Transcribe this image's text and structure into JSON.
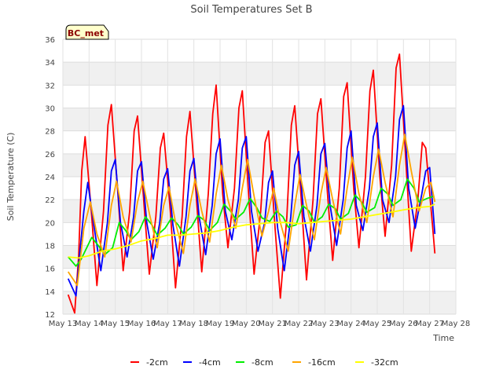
{
  "chart_data": {
    "type": "line",
    "title": "Soil Temperatures Set B",
    "xlabel": "Time",
    "ylabel": "Soil Temperature (C)",
    "site_label": "BC_met",
    "ylim": [
      12,
      36
    ],
    "y_ticks": [
      12,
      14,
      16,
      18,
      20,
      22,
      24,
      26,
      28,
      30,
      32,
      34,
      36
    ],
    "xlim": [
      13,
      28
    ],
    "x_ticks": [
      13,
      14,
      15,
      16,
      17,
      18,
      19,
      20,
      21,
      22,
      23,
      24,
      25,
      26,
      27,
      28
    ],
    "x_tick_labels": [
      "May 13",
      "May 14",
      "May 15",
      "May 16",
      "May 17",
      "May 18",
      "May 19",
      "May 20",
      "May 21",
      "May 22",
      "May 23",
      "May 24",
      "May 25",
      "May 26",
      "May 27",
      "May 28"
    ],
    "grid": "horizontal bands",
    "legend_position": "bottom-center",
    "series": [
      {
        "name": "-2cm",
        "color": "#ff0000",
        "x": [
          13.2,
          13.45,
          13.6,
          13.72,
          13.85,
          14.1,
          14.3,
          14.55,
          14.72,
          14.85,
          15.1,
          15.3,
          15.55,
          15.72,
          15.85,
          16.1,
          16.3,
          16.55,
          16.72,
          16.85,
          17.1,
          17.3,
          17.55,
          17.72,
          17.85,
          18.1,
          18.3,
          18.55,
          18.72,
          18.85,
          19.1,
          19.3,
          19.55,
          19.72,
          19.85,
          20.1,
          20.3,
          20.55,
          20.72,
          20.85,
          21.1,
          21.3,
          21.55,
          21.72,
          21.85,
          22.1,
          22.3,
          22.55,
          22.72,
          22.85,
          23.1,
          23.3,
          23.55,
          23.72,
          23.85,
          24.1,
          24.3,
          24.55,
          24.72,
          24.85,
          25.1,
          25.3,
          25.55,
          25.72,
          25.85,
          26.1,
          26.3,
          26.55,
          26.72,
          26.85,
          27.1,
          27.2
        ],
        "y": [
          13.7,
          12.1,
          17.0,
          24.5,
          27.5,
          20.5,
          14.5,
          21.0,
          28.5,
          30.3,
          22.5,
          15.8,
          21.0,
          28.0,
          29.3,
          21.5,
          15.5,
          20.5,
          26.5,
          27.8,
          21.0,
          14.3,
          20.5,
          27.5,
          29.7,
          22.0,
          15.7,
          22.5,
          29.5,
          32.0,
          22.5,
          17.8,
          23.0,
          30.0,
          31.5,
          22.0,
          15.5,
          21.0,
          27.0,
          28.0,
          19.5,
          13.4,
          20.5,
          28.5,
          30.2,
          22.0,
          15.0,
          22.0,
          29.5,
          30.8,
          22.5,
          16.7,
          23.0,
          31.0,
          32.2,
          23.0,
          17.8,
          24.0,
          31.5,
          33.3,
          24.0,
          18.8,
          25.0,
          33.5,
          34.7,
          25.0,
          17.5,
          22.0,
          27.0,
          26.5,
          20.0,
          17.3
        ]
      },
      {
        "name": "-4cm",
        "color": "#0000ff",
        "x": [
          13.2,
          13.5,
          13.65,
          13.8,
          13.95,
          14.2,
          14.45,
          14.7,
          14.85,
          15.0,
          15.2,
          15.45,
          15.7,
          15.85,
          16.0,
          16.2,
          16.45,
          16.7,
          16.85,
          17.0,
          17.2,
          17.45,
          17.7,
          17.85,
          18.0,
          18.2,
          18.45,
          18.7,
          18.85,
          19.0,
          19.2,
          19.45,
          19.7,
          19.85,
          20.0,
          20.2,
          20.45,
          20.7,
          20.85,
          21.0,
          21.2,
          21.45,
          21.7,
          21.85,
          22.0,
          22.2,
          22.45,
          22.7,
          22.85,
          23.0,
          23.2,
          23.45,
          23.7,
          23.85,
          24.0,
          24.2,
          24.45,
          24.7,
          24.85,
          25.0,
          25.2,
          25.45,
          25.7,
          25.85,
          26.0,
          26.2,
          26.45,
          26.7,
          26.85,
          27.0,
          27.2
        ],
        "y": [
          15.1,
          13.6,
          17.5,
          21.0,
          23.5,
          19.5,
          15.8,
          20.0,
          24.5,
          25.5,
          20.0,
          17.0,
          20.5,
          24.5,
          25.3,
          20.0,
          16.8,
          20.0,
          23.8,
          24.7,
          19.8,
          16.2,
          20.5,
          24.5,
          25.6,
          20.5,
          17.2,
          21.5,
          26.0,
          27.3,
          21.0,
          18.5,
          22.0,
          26.5,
          27.5,
          21.0,
          17.5,
          20.0,
          23.5,
          24.5,
          19.5,
          15.8,
          20.5,
          25.0,
          26.2,
          20.5,
          17.5,
          21.5,
          26.0,
          26.9,
          21.5,
          18.0,
          22.0,
          26.5,
          28.0,
          21.5,
          19.3,
          23.0,
          27.5,
          28.7,
          22.0,
          20.0,
          24.0,
          29.0,
          30.2,
          23.0,
          19.5,
          22.5,
          24.5,
          24.8,
          19.0
        ]
      },
      {
        "name": "-8cm",
        "color": "#00ee00",
        "x": [
          13.2,
          13.5,
          13.7,
          14.1,
          14.35,
          14.6,
          14.9,
          15.15,
          15.4,
          15.6,
          15.9,
          16.15,
          16.4,
          16.6,
          16.9,
          17.15,
          17.4,
          17.6,
          17.9,
          18.15,
          18.4,
          18.6,
          18.9,
          19.15,
          19.4,
          19.6,
          19.9,
          20.15,
          20.4,
          20.6,
          20.9,
          21.15,
          21.4,
          21.6,
          21.9,
          22.15,
          22.4,
          22.6,
          22.9,
          23.15,
          23.4,
          23.6,
          23.9,
          24.15,
          24.4,
          24.6,
          24.9,
          25.15,
          25.4,
          25.6,
          25.9,
          26.15,
          26.4,
          26.6,
          26.9,
          27.15,
          27.2
        ],
        "y": [
          17.0,
          16.2,
          16.8,
          18.7,
          18.0,
          17.2,
          17.8,
          20.0,
          19.3,
          18.5,
          19.2,
          20.5,
          19.8,
          18.9,
          19.5,
          20.4,
          19.8,
          19.0,
          19.6,
          20.6,
          20.2,
          19.3,
          20.0,
          21.6,
          21.0,
          20.3,
          20.9,
          22.1,
          21.3,
          20.4,
          20.1,
          21.0,
          20.5,
          19.6,
          19.8,
          21.5,
          21.0,
          20.0,
          20.5,
          21.6,
          21.2,
          20.3,
          20.8,
          22.4,
          21.8,
          20.9,
          21.3,
          23.0,
          22.5,
          21.5,
          22.0,
          23.8,
          23.0,
          21.8,
          22.1,
          22.3,
          21.8
        ]
      },
      {
        "name": "-16cm",
        "color": "#ffa500",
        "x": [
          13.2,
          13.55,
          13.8,
          14.05,
          14.3,
          14.6,
          14.85,
          15.05,
          15.3,
          15.6,
          15.85,
          16.05,
          16.3,
          16.6,
          16.85,
          17.05,
          17.3,
          17.6,
          17.85,
          18.05,
          18.3,
          18.6,
          18.85,
          19.05,
          19.3,
          19.6,
          19.85,
          20.05,
          20.3,
          20.6,
          20.85,
          21.05,
          21.3,
          21.6,
          21.85,
          22.05,
          22.3,
          22.6,
          22.85,
          23.05,
          23.3,
          23.6,
          23.85,
          24.05,
          24.3,
          24.6,
          24.85,
          25.05,
          25.3,
          25.6,
          25.85,
          26.05,
          26.3,
          26.6,
          26.85,
          27.05,
          27.2
        ],
        "y": [
          15.7,
          14.5,
          19.5,
          21.8,
          19.0,
          17.0,
          21.5,
          23.6,
          20.5,
          18.3,
          21.8,
          23.6,
          20.8,
          17.8,
          21.5,
          23.1,
          20.0,
          17.3,
          21.5,
          23.8,
          21.0,
          18.3,
          22.5,
          25.0,
          22.0,
          19.5,
          23.0,
          25.5,
          22.3,
          18.8,
          21.0,
          23.0,
          20.0,
          17.5,
          21.5,
          24.2,
          21.5,
          18.5,
          22.5,
          24.8,
          22.0,
          19.0,
          23.0,
          25.7,
          22.5,
          20.0,
          24.0,
          26.4,
          23.5,
          20.5,
          25.0,
          27.7,
          24.5,
          21.0,
          23.0,
          23.5,
          21.8
        ]
      },
      {
        "name": "-32cm",
        "color": "#ffff00",
        "x": [
          13.2,
          13.6,
          14.0,
          14.5,
          15.0,
          15.5,
          16.0,
          16.5,
          17.0,
          17.5,
          18.0,
          18.5,
          19.0,
          19.5,
          20.0,
          20.5,
          21.0,
          21.5,
          22.0,
          22.5,
          23.0,
          23.5,
          24.0,
          24.5,
          25.0,
          25.5,
          26.0,
          26.5,
          27.0,
          27.2
        ],
        "y": [
          17.0,
          16.9,
          17.1,
          17.5,
          17.7,
          18.0,
          18.4,
          18.6,
          18.9,
          18.9,
          19.0,
          19.1,
          19.3,
          19.6,
          19.8,
          19.9,
          20.0,
          20.0,
          19.9,
          20.0,
          20.1,
          20.2,
          20.3,
          20.5,
          20.7,
          20.9,
          21.1,
          21.3,
          21.4,
          21.6
        ]
      }
    ]
  }
}
